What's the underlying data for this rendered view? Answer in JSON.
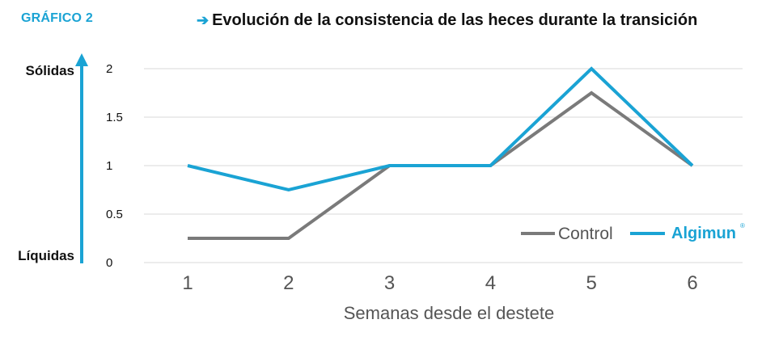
{
  "figure_label": "GRÁFICO 2",
  "title_arrow": "➔",
  "chart_data": {
    "type": "line",
    "title": "Evolución de la consistencia de las heces durante la transición",
    "xlabel": "Semanas desde el destete",
    "ylabel_top": "Sólidas",
    "ylabel_bottom": "Líquidas",
    "x": [
      1,
      2,
      3,
      4,
      5,
      6
    ],
    "x_tick_labels": [
      "1",
      "2",
      "3",
      "4",
      "5",
      "6"
    ],
    "y_tick_labels": [
      "0",
      "0.5",
      "1",
      "1.5",
      "2"
    ],
    "ylim": [
      0,
      2
    ],
    "grid": true,
    "legend_position": "bottom-right",
    "series": [
      {
        "name": "Control",
        "values": [
          0.25,
          0.25,
          1.0,
          1.0,
          1.75,
          1.0
        ],
        "color": "#7a7a7a"
      },
      {
        "name": "Algimun",
        "values": [
          1.0,
          0.75,
          1.0,
          1.0,
          2.0,
          1.0
        ],
        "color": "#1aa3d4"
      }
    ],
    "legend_trademark": "®"
  },
  "colors": {
    "accent": "#1aa3d4",
    "grid": "#d9d9d9",
    "text": "#111111",
    "tick": "#555555"
  }
}
